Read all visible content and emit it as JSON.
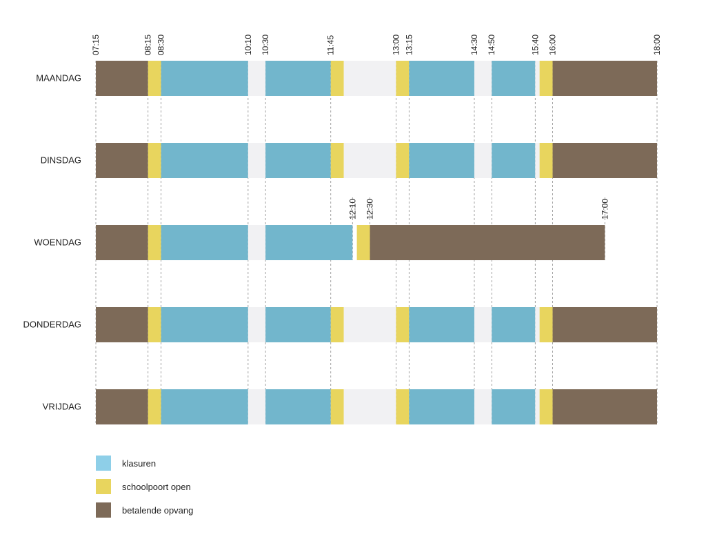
{
  "chart_data": {
    "type": "timeline",
    "title": "",
    "time_range": [
      "07:15",
      "18:00"
    ],
    "top_tick_labels": [
      "07:15",
      "08:15",
      "08:30",
      "10:10",
      "10:30",
      "11:45",
      "13:00",
      "13:15",
      "14:30",
      "14:50",
      "15:40",
      "16:00",
      "18:00"
    ],
    "colors": {
      "klasuren": "#72b6cc",
      "schoolpoort": "#e8d55e",
      "opvang": "#7d6a58",
      "break": "#f1f1f3",
      "gridline": "#8a8a8a",
      "label": "#222222"
    },
    "legend": [
      {
        "key": "klasuren",
        "label": "klasuren",
        "color": "#8ecfe8"
      },
      {
        "key": "schoolpoort",
        "label": "schoolpoort open",
        "color": "#e8d55e"
      },
      {
        "key": "opvang",
        "label": "betalende opvang",
        "color": "#7d6a58"
      }
    ],
    "days": [
      {
        "name": "MAANDAG",
        "segments": [
          {
            "type": "opvang",
            "start": "07:15",
            "end": "08:15"
          },
          {
            "type": "schoolpoort",
            "start": "08:15",
            "end": "08:30"
          },
          {
            "type": "klasuren",
            "start": "08:30",
            "end": "10:10"
          },
          {
            "type": "break",
            "start": "10:10",
            "end": "10:30"
          },
          {
            "type": "klasuren",
            "start": "10:30",
            "end": "11:45"
          },
          {
            "type": "schoolpoort",
            "start": "11:45",
            "end": "12:00"
          },
          {
            "type": "break",
            "start": "12:00",
            "end": "13:00"
          },
          {
            "type": "schoolpoort",
            "start": "13:00",
            "end": "13:15"
          },
          {
            "type": "klasuren",
            "start": "13:15",
            "end": "14:30"
          },
          {
            "type": "break",
            "start": "14:30",
            "end": "14:50"
          },
          {
            "type": "klasuren",
            "start": "14:50",
            "end": "15:40"
          },
          {
            "type": "break",
            "start": "15:40",
            "end": "15:45"
          },
          {
            "type": "schoolpoort",
            "start": "15:45",
            "end": "16:00"
          },
          {
            "type": "opvang",
            "start": "16:00",
            "end": "18:00"
          }
        ]
      },
      {
        "name": "DINSDAG",
        "segments": [
          {
            "type": "opvang",
            "start": "07:15",
            "end": "08:15"
          },
          {
            "type": "schoolpoort",
            "start": "08:15",
            "end": "08:30"
          },
          {
            "type": "klasuren",
            "start": "08:30",
            "end": "10:10"
          },
          {
            "type": "break",
            "start": "10:10",
            "end": "10:30"
          },
          {
            "type": "klasuren",
            "start": "10:30",
            "end": "11:45"
          },
          {
            "type": "schoolpoort",
            "start": "11:45",
            "end": "12:00"
          },
          {
            "type": "break",
            "start": "12:00",
            "end": "13:00"
          },
          {
            "type": "schoolpoort",
            "start": "13:00",
            "end": "13:15"
          },
          {
            "type": "klasuren",
            "start": "13:15",
            "end": "14:30"
          },
          {
            "type": "break",
            "start": "14:30",
            "end": "14:50"
          },
          {
            "type": "klasuren",
            "start": "14:50",
            "end": "15:40"
          },
          {
            "type": "break",
            "start": "15:40",
            "end": "15:45"
          },
          {
            "type": "schoolpoort",
            "start": "15:45",
            "end": "16:00"
          },
          {
            "type": "opvang",
            "start": "16:00",
            "end": "18:00"
          }
        ]
      },
      {
        "name": "WOENDAG",
        "tick_labels": [
          "12:10",
          "12:30",
          "17:00"
        ],
        "segments": [
          {
            "type": "opvang",
            "start": "07:15",
            "end": "08:15"
          },
          {
            "type": "schoolpoort",
            "start": "08:15",
            "end": "08:30"
          },
          {
            "type": "klasuren",
            "start": "08:30",
            "end": "10:10"
          },
          {
            "type": "break",
            "start": "10:10",
            "end": "10:30"
          },
          {
            "type": "klasuren",
            "start": "10:30",
            "end": "12:10"
          },
          {
            "type": "schoolpoort",
            "start": "12:15",
            "end": "12:30"
          },
          {
            "type": "opvang",
            "start": "12:30",
            "end": "17:00"
          }
        ]
      },
      {
        "name": "DONDERDAG",
        "segments": [
          {
            "type": "opvang",
            "start": "07:15",
            "end": "08:15"
          },
          {
            "type": "schoolpoort",
            "start": "08:15",
            "end": "08:30"
          },
          {
            "type": "klasuren",
            "start": "08:30",
            "end": "10:10"
          },
          {
            "type": "break",
            "start": "10:10",
            "end": "10:30"
          },
          {
            "type": "klasuren",
            "start": "10:30",
            "end": "11:45"
          },
          {
            "type": "schoolpoort",
            "start": "11:45",
            "end": "12:00"
          },
          {
            "type": "break",
            "start": "12:00",
            "end": "13:00"
          },
          {
            "type": "schoolpoort",
            "start": "13:00",
            "end": "13:15"
          },
          {
            "type": "klasuren",
            "start": "13:15",
            "end": "14:30"
          },
          {
            "type": "break",
            "start": "14:30",
            "end": "14:50"
          },
          {
            "type": "klasuren",
            "start": "14:50",
            "end": "15:40"
          },
          {
            "type": "break",
            "start": "15:40",
            "end": "15:45"
          },
          {
            "type": "schoolpoort",
            "start": "15:45",
            "end": "16:00"
          },
          {
            "type": "opvang",
            "start": "16:00",
            "end": "18:00"
          }
        ]
      },
      {
        "name": "VRIJDAG",
        "segments": [
          {
            "type": "opvang",
            "start": "07:15",
            "end": "08:15"
          },
          {
            "type": "schoolpoort",
            "start": "08:15",
            "end": "08:30"
          },
          {
            "type": "klasuren",
            "start": "08:30",
            "end": "10:10"
          },
          {
            "type": "break",
            "start": "10:10",
            "end": "10:30"
          },
          {
            "type": "klasuren",
            "start": "10:30",
            "end": "11:45"
          },
          {
            "type": "schoolpoort",
            "start": "11:45",
            "end": "12:00"
          },
          {
            "type": "break",
            "start": "12:00",
            "end": "13:00"
          },
          {
            "type": "schoolpoort",
            "start": "13:00",
            "end": "13:15"
          },
          {
            "type": "klasuren",
            "start": "13:15",
            "end": "14:30"
          },
          {
            "type": "break",
            "start": "14:30",
            "end": "14:50"
          },
          {
            "type": "klasuren",
            "start": "14:50",
            "end": "15:40"
          },
          {
            "type": "break",
            "start": "15:40",
            "end": "15:45"
          },
          {
            "type": "schoolpoort",
            "start": "15:45",
            "end": "16:00"
          },
          {
            "type": "opvang",
            "start": "16:00",
            "end": "18:00"
          }
        ]
      }
    ]
  }
}
